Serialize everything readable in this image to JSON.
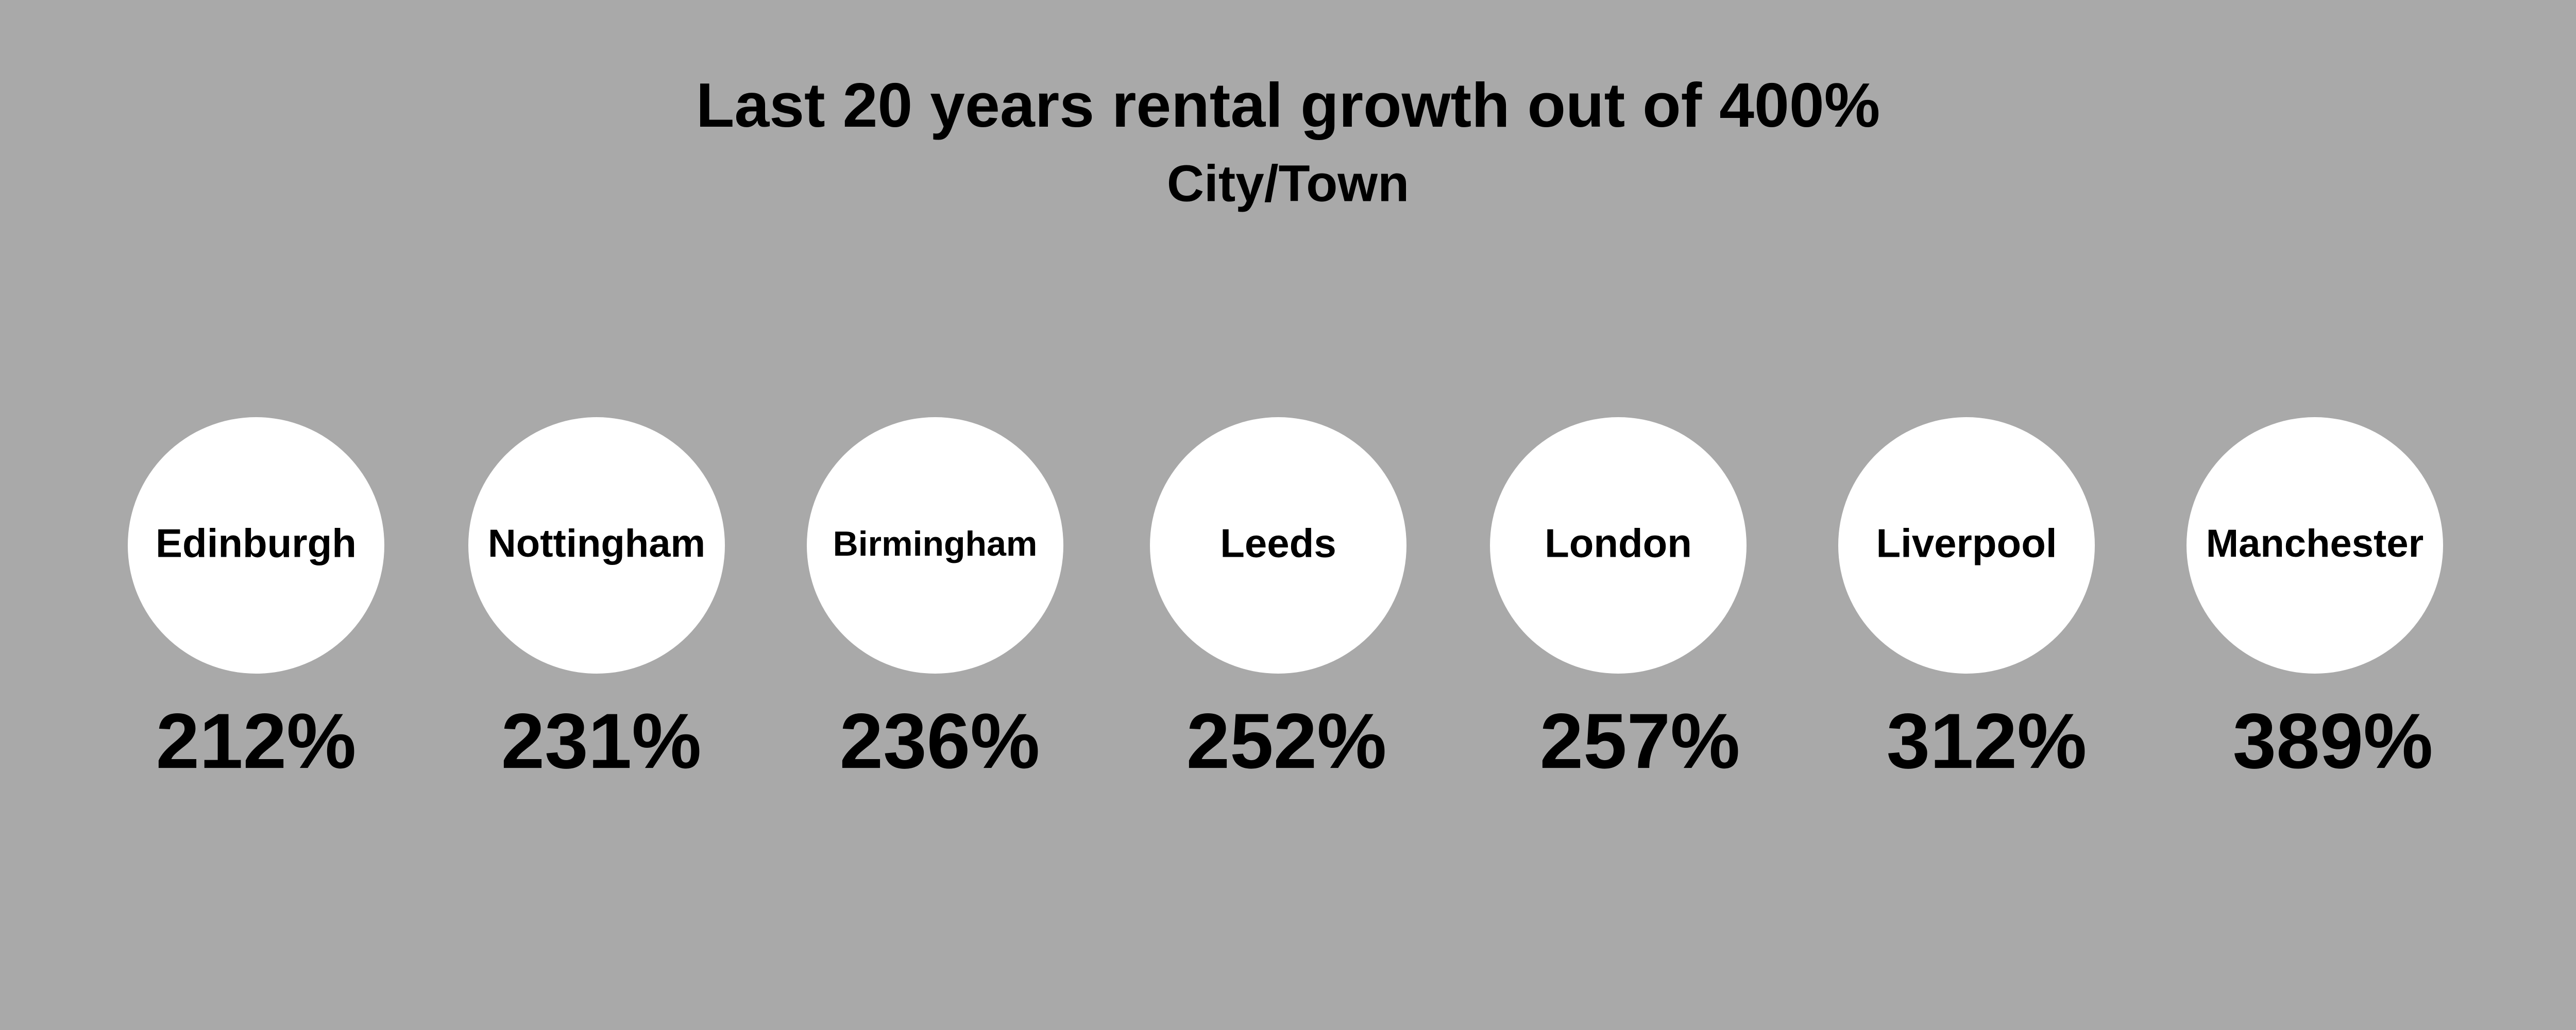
{
  "header": {
    "title": "Last 20 years rental growth out of 400%",
    "subtitle": "City/Town"
  },
  "items": [
    {
      "city": "Edinburgh",
      "value": "212%"
    },
    {
      "city": "Nottingham",
      "value": "231%"
    },
    {
      "city": "Birmingham",
      "value": "236%"
    },
    {
      "city": "Leeds",
      "value": "252%"
    },
    {
      "city": "London",
      "value": "257%"
    },
    {
      "city": "Liverpool",
      "value": "312%"
    },
    {
      "city": "Manchester",
      "value": "389%"
    }
  ]
}
